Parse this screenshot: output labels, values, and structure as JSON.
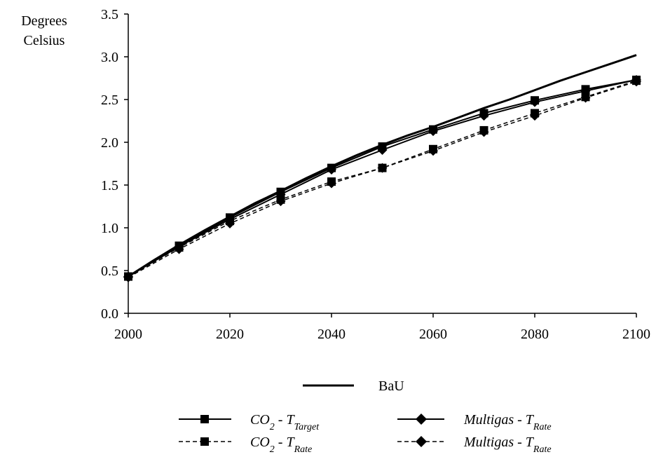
{
  "chart_data": {
    "type": "line",
    "ylabel_lines": [
      "Degrees",
      "Celsius"
    ],
    "x": [
      2000,
      2010,
      2020,
      2030,
      2040,
      2050,
      2060,
      2070,
      2080,
      2090,
      2100
    ],
    "xlim": [
      2000,
      2100
    ],
    "ylim": [
      0.0,
      3.5
    ],
    "x_ticks": [
      "2000",
      "2020",
      "2040",
      "2060",
      "2080",
      "2100"
    ],
    "y_ticks": [
      "0.0",
      "0.5",
      "1.0",
      "1.5",
      "2.0",
      "2.5",
      "3.0",
      "3.5"
    ],
    "grid": false,
    "legend_position": "bottom",
    "series": [
      {
        "key": "bau",
        "name": "BaU",
        "style": "solid-thick",
        "marker": "none",
        "x": [
          2000,
          2005,
          2010,
          2015,
          2020,
          2025,
          2030,
          2035,
          2040,
          2045,
          2050,
          2055,
          2060,
          2065,
          2070,
          2075,
          2080,
          2085,
          2090,
          2095,
          2100
        ],
        "values": [
          0.43,
          0.62,
          0.8,
          0.97,
          1.13,
          1.29,
          1.43,
          1.58,
          1.72,
          1.85,
          1.97,
          2.08,
          2.18,
          2.29,
          2.4,
          2.5,
          2.61,
          2.72,
          2.82,
          2.92,
          3.02
        ]
      },
      {
        "key": "co2_target",
        "name_main": "CO",
        "name_sub1": "2",
        "name_mid": " - T",
        "name_sub2": "Target",
        "style": "solid",
        "marker": "square",
        "x": [
          2000,
          2010,
          2020,
          2030,
          2040,
          2050,
          2060,
          2070,
          2080,
          2090,
          2100
        ],
        "values": [
          0.43,
          0.79,
          1.12,
          1.42,
          1.7,
          1.95,
          2.15,
          2.34,
          2.49,
          2.62,
          2.73
        ]
      },
      {
        "key": "co2_rate",
        "name_main": "CO",
        "name_sub1": "2",
        "name_mid": " - T",
        "name_sub2": "Rate",
        "style": "dashed",
        "marker": "square",
        "x": [
          2000,
          2010,
          2020,
          2030,
          2040,
          2050,
          2060,
          2070,
          2080,
          2090,
          2100
        ],
        "values": [
          0.43,
          0.77,
          1.08,
          1.33,
          1.54,
          1.7,
          1.92,
          2.14,
          2.34,
          2.53,
          2.72
        ]
      },
      {
        "key": "multigas_target",
        "name_main": "Multigas - T",
        "name_sub2": "Rate",
        "style": "solid",
        "marker": "diamond",
        "x": [
          2000,
          2010,
          2020,
          2030,
          2040,
          2050,
          2060,
          2070,
          2080,
          2090,
          2100
        ],
        "values": [
          0.43,
          0.78,
          1.1,
          1.39,
          1.68,
          1.91,
          2.13,
          2.31,
          2.47,
          2.6,
          2.73
        ]
      },
      {
        "key": "multigas_rate",
        "name_main": "Multigas - T",
        "name_sub2": "Rate",
        "style": "dashed",
        "marker": "diamond",
        "x": [
          2000,
          2010,
          2020,
          2030,
          2040,
          2050,
          2060,
          2070,
          2080,
          2090,
          2100
        ],
        "values": [
          0.42,
          0.75,
          1.05,
          1.31,
          1.52,
          1.7,
          1.9,
          2.12,
          2.31,
          2.52,
          2.71
        ]
      }
    ]
  }
}
